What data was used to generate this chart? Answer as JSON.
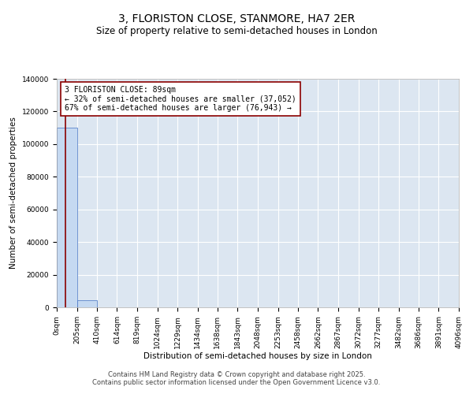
{
  "title_line1": "3, FLORISTON CLOSE, STANMORE, HA7 2ER",
  "title_line2": "Size of property relative to semi-detached houses in London",
  "xlabel": "Distribution of semi-detached houses by size in London",
  "ylabel": "Number of semi-detached properties",
  "property_size": 89,
  "smaller_count": 37052,
  "larger_count": 76943,
  "smaller_pct": 32,
  "larger_pct": 67,
  "annotation_text": "3 FLORISTON CLOSE: 89sqm\n← 32% of semi-detached houses are smaller (37,052)\n67% of semi-detached houses are larger (76,943) →",
  "bar_color": "#c5d9f1",
  "bar_edge_color": "#4472c4",
  "line_color": "#8b0000",
  "background_color": "#dce6f1",
  "annotation_box_color": "white",
  "annotation_edge_color": "#8b0000",
  "bin_edges": [
    0,
    205,
    410,
    614,
    819,
    1024,
    1229,
    1434,
    1638,
    1843,
    2048,
    2253,
    2458,
    2662,
    2867,
    3072,
    3277,
    3482,
    3686,
    3891,
    4096
  ],
  "bin_counts": [
    110000,
    4500,
    200,
    60,
    30,
    15,
    10,
    7,
    5,
    4,
    3,
    3,
    2,
    2,
    2,
    1,
    1,
    1,
    1,
    1
  ],
  "ylim": [
    0,
    140000
  ],
  "yticks": [
    0,
    20000,
    40000,
    60000,
    80000,
    100000,
    120000,
    140000
  ],
  "tick_labels": [
    "0sqm",
    "205sqm",
    "410sqm",
    "614sqm",
    "819sqm",
    "1024sqm",
    "1229sqm",
    "1434sqm",
    "1638sqm",
    "1843sqm",
    "2048sqm",
    "2253sqm",
    "2458sqm",
    "2662sqm",
    "2867sqm",
    "3072sqm",
    "3277sqm",
    "3482sqm",
    "3686sqm",
    "3891sqm",
    "4096sqm"
  ],
  "footer_text": "Contains HM Land Registry data © Crown copyright and database right 2025.\nContains public sector information licensed under the Open Government Licence v3.0.",
  "title_fontsize": 10,
  "subtitle_fontsize": 8.5,
  "axis_label_fontsize": 7.5,
  "tick_fontsize": 6.5,
  "annotation_fontsize": 7,
  "footer_fontsize": 6
}
